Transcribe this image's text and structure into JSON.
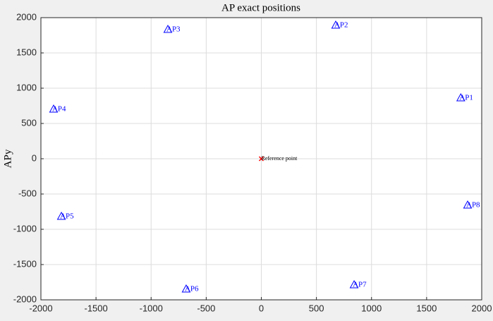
{
  "chart_data": {
    "type": "scatter",
    "title": "AP exact positions",
    "ylabel": "APy",
    "xlim": [
      -2000,
      2000
    ],
    "ylim": [
      -2000,
      2000
    ],
    "xticks": [
      -2000,
      -1500,
      -1000,
      -500,
      0,
      500,
      1000,
      1500,
      2000
    ],
    "yticks": [
      -2000,
      -1500,
      -1000,
      -500,
      0,
      500,
      1000,
      1500,
      2000
    ],
    "grid": true,
    "series": [
      {
        "color": "#0000ff",
        "marker": "triangle",
        "labels": [
          "AP1",
          "AP2",
          "AP3",
          "AP4",
          "AP5",
          "AP6",
          "AP7",
          "AP8"
        ],
        "x": [
          1810,
          675,
          -848,
          -1885,
          -1814,
          -682,
          842,
          1872
        ],
        "values": [
          860,
          1890,
          1830,
          700,
          -820,
          -1850,
          -1790,
          -660
        ]
      },
      {
        "color": "#ff0000",
        "marker": "x",
        "labels": [
          "Reference point"
        ],
        "x": [
          0
        ],
        "values": [
          0
        ]
      }
    ]
  }
}
